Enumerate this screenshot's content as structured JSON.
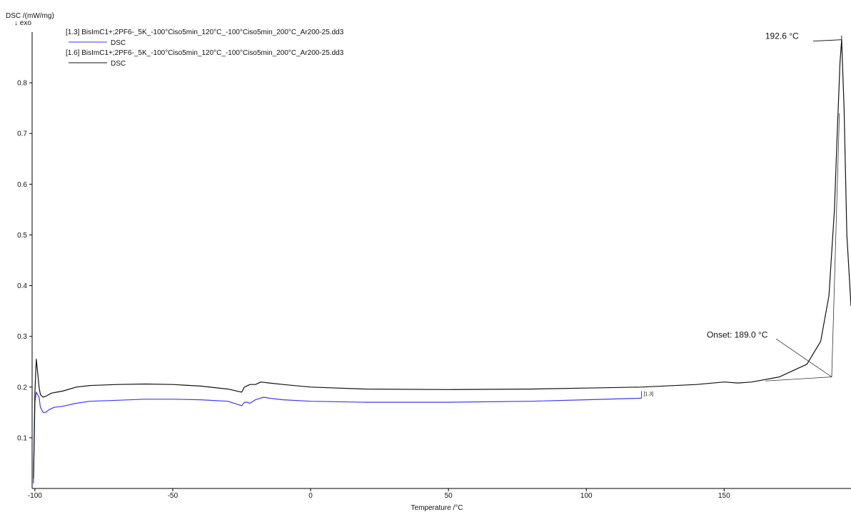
{
  "chart_data": {
    "type": "line",
    "title": "",
    "xlabel": "Temperature /°C",
    "ylabel": "DSC /(mW/mg)",
    "y_direction_note": "↓ exo",
    "xlim": [
      -101,
      196
    ],
    "ylim": [
      0.0,
      0.9
    ],
    "x_ticks": [
      -100,
      -50,
      0,
      50,
      100,
      150
    ],
    "y_ticks": [
      0.1,
      0.2,
      0.3,
      0.4,
      0.5,
      0.6,
      0.7,
      0.8
    ],
    "grid": false,
    "legend": [
      {
        "file": "[1.3] BisImC1+;2PF6-_5K_-100°Ciso5min_120°C_-100°Ciso5min_200°C_Ar200-25.dd3",
        "label": "DSC",
        "color": "#3a3af0"
      },
      {
        "file": "[1.6] BisImC1+;2PF6-_5K_-100°Ciso5min_120°C_-100°Ciso5min_200°C_Ar200-25.dd3",
        "label": "DSC",
        "color": "#111111"
      }
    ],
    "series": [
      {
        "color": "#3a3af0",
        "x": [
          -100.5,
          -100,
          -99.5,
          -98.5,
          -98,
          -97,
          -96,
          -95,
          -93,
          -90,
          -85,
          -80,
          -70,
          -60,
          -50,
          -40,
          -30,
          -26,
          -25,
          -24,
          -23,
          -22,
          -20,
          -17,
          -15,
          -10,
          0,
          20,
          50,
          80,
          100,
          120
        ],
        "y": [
          0.01,
          0.17,
          0.19,
          0.18,
          0.16,
          0.15,
          0.15,
          0.155,
          0.16,
          0.162,
          0.168,
          0.172,
          0.174,
          0.176,
          0.176,
          0.175,
          0.172,
          0.165,
          0.163,
          0.17,
          0.17,
          0.168,
          0.175,
          0.18,
          0.178,
          0.175,
          0.172,
          0.17,
          0.17,
          0.172,
          0.175,
          0.178
        ]
      },
      {
        "color": "#111111",
        "x": [
          -100.5,
          -100,
          -99.5,
          -99,
          -98.5,
          -98,
          -97,
          -96,
          -94,
          -92,
          -90,
          -85,
          -80,
          -70,
          -60,
          -50,
          -40,
          -30,
          -25,
          -24,
          -22,
          -20,
          -18,
          -15,
          -10,
          0,
          20,
          50,
          80,
          100,
          120,
          140,
          150,
          155,
          160,
          170,
          180,
          185,
          188,
          190,
          191,
          192,
          192.6,
          193.5,
          194.5,
          196
        ],
        "y": [
          0.02,
          0.19,
          0.255,
          0.23,
          0.2,
          0.185,
          0.18,
          0.182,
          0.188,
          0.19,
          0.192,
          0.2,
          0.203,
          0.205,
          0.206,
          0.205,
          0.202,
          0.196,
          0.19,
          0.2,
          0.205,
          0.205,
          0.21,
          0.208,
          0.205,
          0.2,
          0.196,
          0.195,
          0.196,
          0.198,
          0.2,
          0.205,
          0.21,
          0.208,
          0.21,
          0.22,
          0.245,
          0.29,
          0.38,
          0.55,
          0.7,
          0.84,
          0.885,
          0.75,
          0.5,
          0.36
        ]
      }
    ],
    "annotations": [
      {
        "text": "192.6 °C",
        "x": 192.6,
        "y": 0.885
      },
      {
        "text": "Onset: 189.0 °C",
        "x": 189.0,
        "y": 0.22
      }
    ],
    "curve_tags": [
      "[1.3]"
    ]
  }
}
